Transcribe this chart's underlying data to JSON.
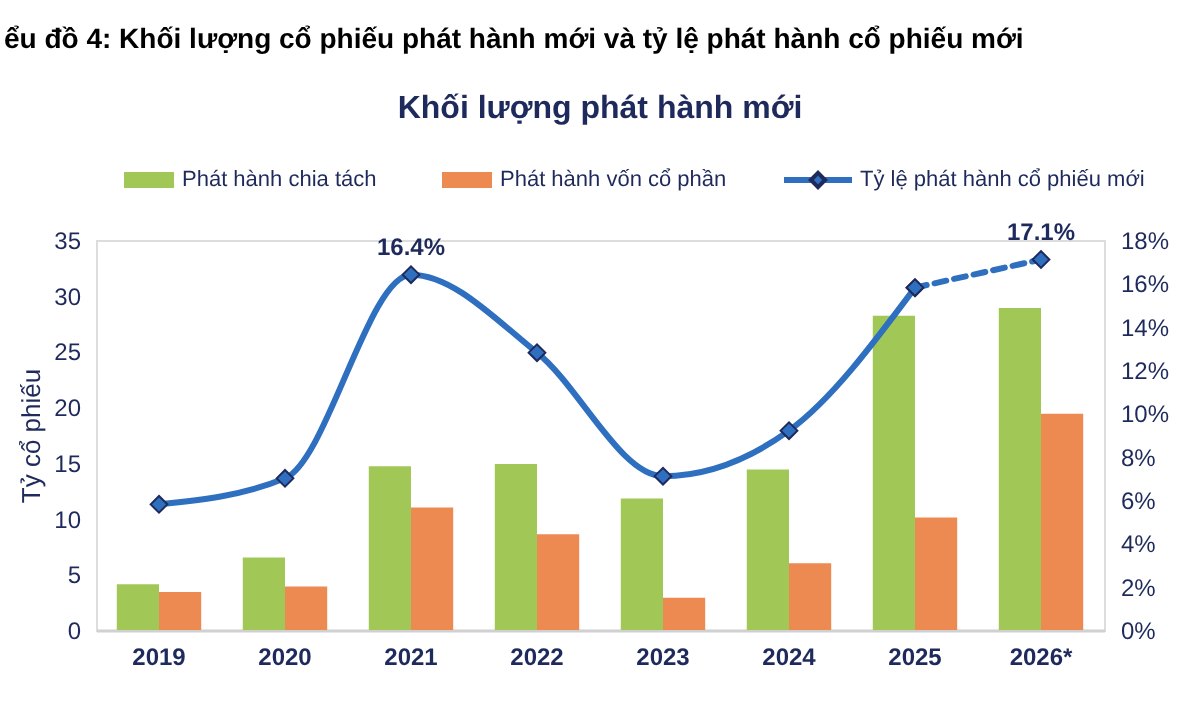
{
  "chart_data": {
    "type": "bar",
    "title": "ểu đồ 4: Khối lượng cổ phiếu phát hành mới và tỷ lệ phát hành cổ phiếu mới",
    "subtitle": "Khối lượng phát hành mới",
    "ylabel": "Tỷ cổ phiếu",
    "categories": [
      "2019",
      "2020",
      "2021",
      "2022",
      "2023",
      "2024",
      "2025",
      "2026*"
    ],
    "series": [
      {
        "name": "Phát hành chia tách",
        "color": "#a1c856",
        "values": [
          4.1,
          6.5,
          14.7,
          14.9,
          11.8,
          14.4,
          28.2,
          28.9
        ]
      },
      {
        "name": "Phát hành vốn cổ phần",
        "color": "#ed8a52",
        "values": [
          3.4,
          3.9,
          11.0,
          8.6,
          2.9,
          6.0,
          10.1,
          19.4
        ]
      },
      {
        "name": "Tỷ lệ phát hành cổ phiếu mới",
        "type": "line",
        "axis": "y2",
        "color": "#2e6fbf",
        "marker": "diamond",
        "line_style": "solid",
        "values": [
          5.8,
          7.0,
          16.4,
          12.8,
          7.1,
          9.2,
          15.8,
          null
        ],
        "value_labels": [
          null,
          null,
          "16.4%",
          null,
          null,
          null,
          null,
          null
        ]
      },
      {
        "type": "line",
        "axis": "y2",
        "color": "#2e6fbf",
        "marker": "diamond",
        "line_style": "dashed",
        "values": [
          null,
          null,
          null,
          null,
          null,
          null,
          15.8,
          17.1
        ],
        "value_labels": [
          null,
          null,
          null,
          null,
          null,
          null,
          null,
          "17.1%"
        ]
      }
    ],
    "ylim": [
      0,
      35
    ],
    "yticks": [
      0,
      5,
      10,
      15,
      20,
      25,
      30,
      35
    ],
    "y2lim": [
      0,
      18
    ],
    "y2ticks": [
      {
        "value": 0,
        "label": "0%"
      },
      {
        "value": 2,
        "label": "2%"
      },
      {
        "value": 4,
        "label": "4%"
      },
      {
        "value": 6,
        "label": "6%"
      },
      {
        "value": 8,
        "label": "8%"
      },
      {
        "value": 10,
        "label": "10%"
      },
      {
        "value": 12,
        "label": "12%"
      },
      {
        "value": 14,
        "label": "14%"
      },
      {
        "value": 16,
        "label": "16%"
      },
      {
        "value": 18,
        "label": "18%"
      }
    ],
    "grid": false,
    "legend": "top"
  }
}
